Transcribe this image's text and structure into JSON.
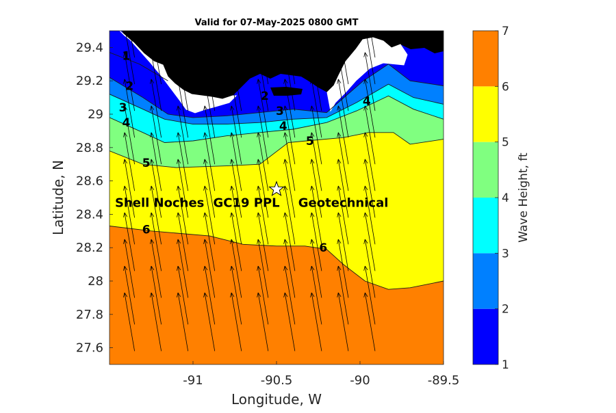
{
  "chart_data": {
    "type": "heatmap",
    "title": "Valid for 07-May-2025 0800 GMT",
    "xlabel": "Longitude, W",
    "ylabel": "Latitude, N",
    "xlim": [
      -91.5,
      -89.5
    ],
    "ylim": [
      27.5,
      29.5
    ],
    "x_ticks": [
      -91,
      -90.5,
      -90,
      -89.5
    ],
    "x_tick_labels": [
      "-91",
      "-90.5",
      "-90",
      "-89.5"
    ],
    "y_ticks": [
      27.6,
      27.8,
      28,
      28.2,
      28.4,
      28.6,
      28.8,
      29,
      29.2,
      29.4
    ],
    "y_tick_labels": [
      "27.6",
      "27.8",
      "28",
      "28.2",
      "28.4",
      "28.6",
      "28.8",
      "29",
      "29.2",
      "29.4"
    ],
    "colorbar": {
      "label": "Wave Height, ft",
      "levels": [
        1,
        2,
        3,
        4,
        5,
        6,
        7
      ],
      "colors": [
        "#0000ff",
        "#0080ff",
        "#00ffff",
        "#80ff80",
        "#ffff00",
        "#ff8000"
      ]
    },
    "contours": [
      {
        "level": 1,
        "points": [
          [
            -91.5,
            29.37
          ],
          [
            -91.32,
            29.3
          ],
          [
            -91.15,
            29.2
          ]
        ]
      },
      {
        "level": 2,
        "points": [
          [
            -91.5,
            29.22
          ],
          [
            -91.3,
            29.1
          ],
          [
            -91.15,
            29.0
          ],
          [
            -91.0,
            28.98
          ],
          [
            -90.8,
            28.99
          ],
          [
            -90.6,
            29.01
          ],
          [
            -90.4,
            29.03
          ],
          [
            -90.2,
            29.01
          ],
          [
            -89.98,
            29.2
          ],
          [
            -89.83,
            29.3
          ],
          [
            -89.7,
            29.2
          ],
          [
            -89.5,
            29.17
          ]
        ]
      },
      {
        "level": 3,
        "points": [
          [
            -91.5,
            29.12
          ],
          [
            -91.3,
            29.03
          ],
          [
            -91.17,
            28.97
          ],
          [
            -91.0,
            28.94
          ],
          [
            -90.8,
            28.94
          ],
          [
            -90.6,
            28.95
          ],
          [
            -90.4,
            28.97
          ],
          [
            -90.2,
            28.98
          ],
          [
            -90.02,
            29.07
          ],
          [
            -89.83,
            29.18
          ],
          [
            -89.68,
            29.1
          ],
          [
            -89.5,
            29.06
          ]
        ]
      },
      {
        "level": 4,
        "points": [
          [
            -91.5,
            28.98
          ],
          [
            -91.3,
            28.89
          ],
          [
            -91.17,
            28.83
          ],
          [
            -91.0,
            28.84
          ],
          [
            -90.8,
            28.87
          ],
          [
            -90.6,
            28.89
          ],
          [
            -90.4,
            28.91
          ],
          [
            -90.2,
            28.95
          ],
          [
            -90.02,
            29.02
          ],
          [
            -89.83,
            29.11
          ],
          [
            -89.68,
            29.03
          ],
          [
            -89.5,
            28.97
          ]
        ]
      },
      {
        "level": 5,
        "points": [
          [
            -91.5,
            28.78
          ],
          [
            -91.3,
            28.7
          ],
          [
            -91.1,
            28.68
          ],
          [
            -90.8,
            28.69
          ],
          [
            -90.6,
            28.7
          ],
          [
            -90.43,
            28.83
          ],
          [
            -90.32,
            28.84
          ],
          [
            -90.1,
            28.86
          ],
          [
            -89.95,
            28.89
          ],
          [
            -89.8,
            28.89
          ],
          [
            -89.7,
            28.82
          ],
          [
            -89.5,
            28.85
          ]
        ]
      },
      {
        "level": 6,
        "points": [
          [
            -91.5,
            28.33
          ],
          [
            -91.25,
            28.3
          ],
          [
            -90.9,
            28.27
          ],
          [
            -90.7,
            28.22
          ],
          [
            -90.5,
            28.21
          ],
          [
            -90.33,
            28.21
          ],
          [
            -90.2,
            28.19
          ],
          [
            -90.1,
            28.1
          ],
          [
            -89.97,
            28.0
          ],
          [
            -89.83,
            27.95
          ],
          [
            -89.7,
            27.96
          ],
          [
            -89.5,
            28.0
          ]
        ]
      }
    ],
    "contour_labels": [
      {
        "text": "1",
        "lon": -91.4,
        "lat": 29.35
      },
      {
        "text": "2",
        "lon": -91.38,
        "lat": 29.17
      },
      {
        "text": "3",
        "lon": -91.42,
        "lat": 29.04
      },
      {
        "text": "4",
        "lon": -91.4,
        "lat": 28.95
      },
      {
        "text": "5",
        "lon": -91.28,
        "lat": 28.71
      },
      {
        "text": "6",
        "lon": -91.28,
        "lat": 28.31
      },
      {
        "text": "2",
        "lon": -90.57,
        "lat": 29.11
      },
      {
        "text": "3",
        "lon": -90.48,
        "lat": 29.02
      },
      {
        "text": "4",
        "lon": -90.46,
        "lat": 28.93
      },
      {
        "text": "5",
        "lon": -90.3,
        "lat": 28.84
      },
      {
        "text": "4",
        "lon": -89.96,
        "lat": 29.08
      },
      {
        "text": "6",
        "lon": -90.22,
        "lat": 28.2
      }
    ],
    "sites": [
      {
        "name": "Shell Noches",
        "lon": -91.2,
        "lat": 28.47
      },
      {
        "name": "GC19 PPL",
        "lon": -90.68,
        "lat": 28.47
      },
      {
        "name": "Geotechnical",
        "lon": -90.1,
        "lat": 28.47
      }
    ],
    "star_marker": {
      "lon": -90.5,
      "lat": 28.55
    },
    "vector_field": {
      "description": "wave direction arrows on a regular grid",
      "lon_start": -91.35,
      "lon_step": 0.16,
      "lon_count": 10,
      "lat_start": 27.58,
      "lat_step": 0.16,
      "lat_count": 12,
      "direction_dx": -0.06,
      "direction_dy": 0.35
    }
  }
}
